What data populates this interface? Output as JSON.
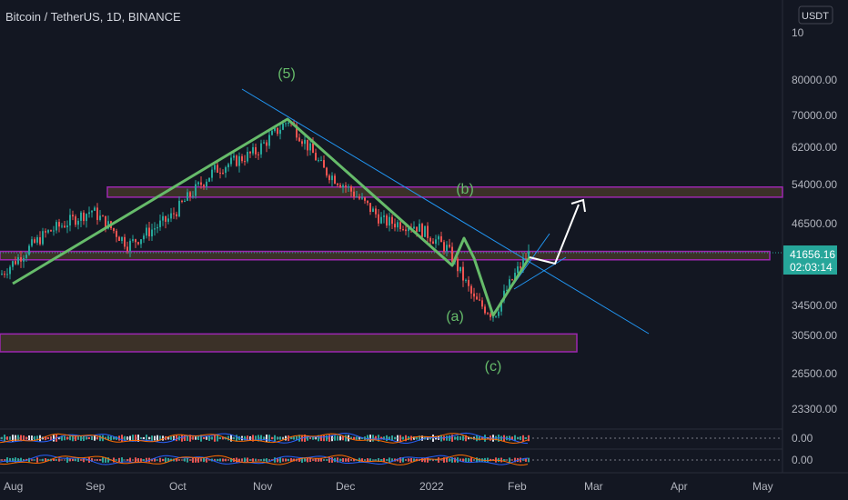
{
  "header": {
    "symbol": "Bitcoin / TetherUS, 1D, BINANCE"
  },
  "price_axis": {
    "currency": "USDT",
    "top_label": "10",
    "labels": [
      "80000.00",
      "70000.00",
      "62000.00",
      "54000.00",
      "46500.00",
      "34500.00",
      "30500.00",
      "26500.00",
      "23300.00"
    ],
    "last_price": "41656.16",
    "countdown": "02:03:14"
  },
  "indicator_axis": {
    "labels": [
      "0.00",
      "0.00"
    ]
  },
  "time_axis": {
    "labels": [
      "Aug",
      "Sep",
      "Oct",
      "Nov",
      "Dec",
      "2022",
      "Feb",
      "Mar",
      "Apr",
      "May"
    ]
  },
  "wave_labels": {
    "w5": "(5)",
    "wb": "(b)",
    "wa": "(a)",
    "wc": "(c)"
  },
  "colors": {
    "background": "#131722",
    "candle_up": "#26a69a",
    "candle_down": "#ef5350",
    "wave": "#66bb6a",
    "trendline": "#2196f3",
    "zone_border": "#9c27b0",
    "zone_fill": "#4a3b2b",
    "price_tag": "#26a69a",
    "axis_text": "#b2b5be"
  },
  "chart_data": {
    "type": "candlestick",
    "title": "Bitcoin / TetherUS, 1D, BINANCE",
    "y_scale": "log",
    "ylim": [
      21000,
      100000
    ],
    "x": [
      "Aug",
      "Sep",
      "Oct",
      "Nov",
      "Dec",
      "2022",
      "Feb",
      "Mar",
      "Apr",
      "May"
    ],
    "series": [
      {
        "name": "price_path",
        "values": [
          [
            "Aug",
            38500
          ],
          [
            "Aug-mid",
            45000
          ],
          [
            "Sep",
            49000
          ],
          [
            "Sep-mid",
            43000
          ],
          [
            "Oct",
            47500
          ],
          [
            "Oct-mid",
            57000
          ],
          [
            "Nov",
            61000
          ],
          [
            "Nov-10",
            68800
          ],
          [
            "Nov-end",
            57000
          ],
          [
            "Dec",
            53500
          ],
          [
            "Dec-mid",
            47000
          ],
          [
            "2022",
            46300
          ],
          [
            "Jan-mid",
            42500
          ],
          [
            "Jan-22",
            35000
          ],
          [
            "Jan-24",
            33000
          ],
          [
            "Feb",
            38500
          ],
          [
            "Feb-4",
            41656
          ]
        ]
      }
    ],
    "zones": [
      {
        "name": "resistance",
        "range": [
          51500,
          53500
        ]
      },
      {
        "name": "support",
        "range": [
          40700,
          42000
        ]
      },
      {
        "name": "demand",
        "range": [
          28800,
          30800
        ]
      }
    ],
    "elliott_wave_labels": [
      "(5)",
      "(a)",
      "(b)",
      "(c)"
    ],
    "last_price": 41656.16
  }
}
